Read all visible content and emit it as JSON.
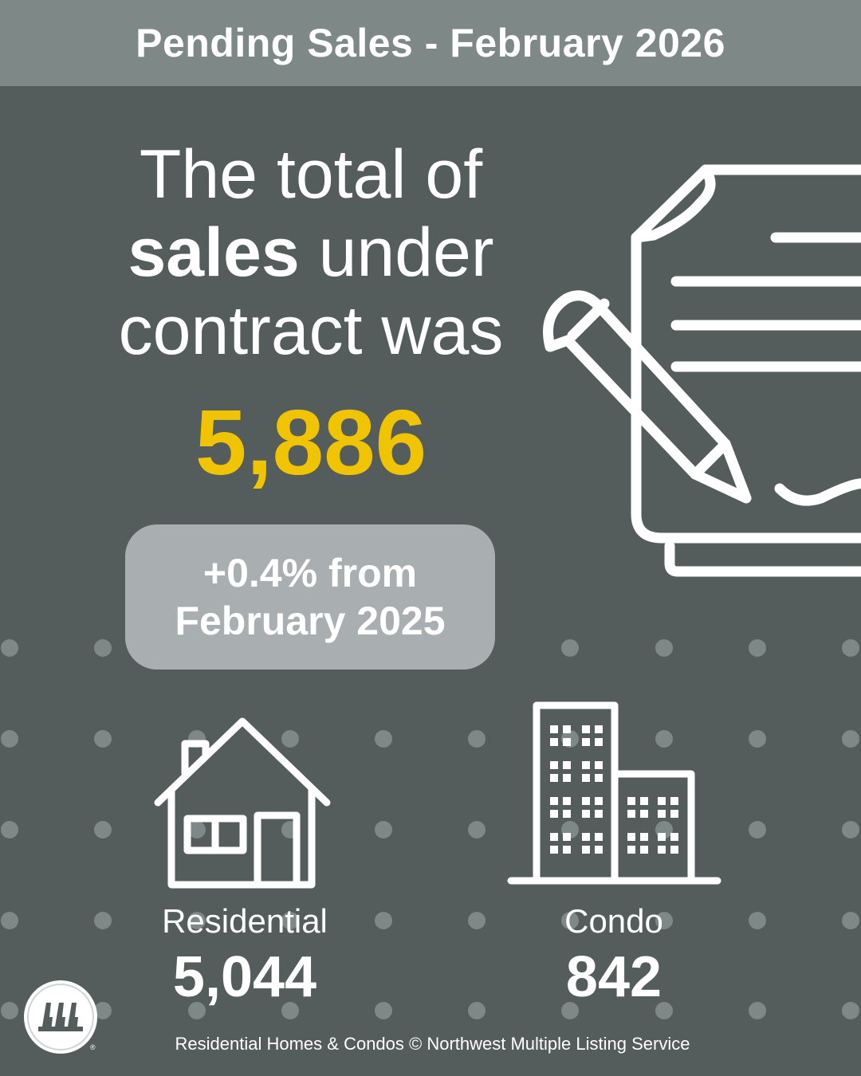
{
  "header": {
    "title": "Pending Sales - February 2026"
  },
  "headline": {
    "line1": "The total of",
    "line2_bold": "sales",
    "line2_rest": " under",
    "line3": "contract was"
  },
  "total": {
    "value": "5,886",
    "color": "#f0c400"
  },
  "change": {
    "line1": "+0.4% from",
    "line2": "February 2025"
  },
  "categories": [
    {
      "label": "Residential",
      "value": "5,044",
      "icon": "house-icon"
    },
    {
      "label": "Condo",
      "value": "842",
      "icon": "building-icon"
    }
  ],
  "footer": {
    "text": "Residential Homes & Condos © Northwest Multiple Listing Service"
  },
  "logo": {
    "icon": "nwmls-logo-icon",
    "mark": "®"
  },
  "colors": {
    "background": "#545d5b",
    "header": "#7e8886",
    "pill": "#a9aeb1",
    "accent": "#f0c400",
    "dot": "#7e8886"
  }
}
